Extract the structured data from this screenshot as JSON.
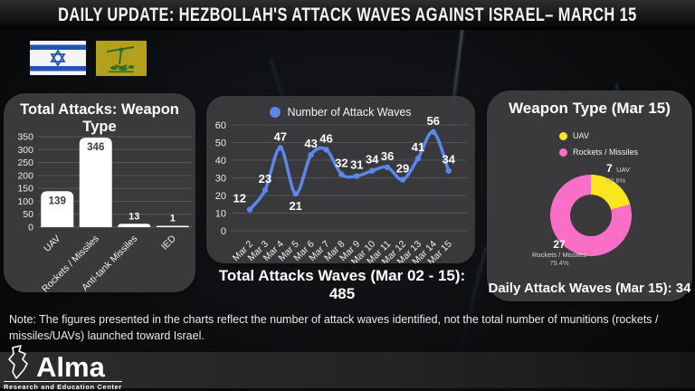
{
  "header": {
    "title": "DAILY UPDATE: HEZBOLLAH'S ATTACK WAVES AGAINST ISRAEL– MARCH 15"
  },
  "bar_panel": {
    "title": "Total Attacks: Weapon Type"
  },
  "line_panel": {
    "legend": "Number of Attack Waves",
    "total_label": "Total Attacks Waves (Mar 02 - 15):",
    "total_value": "485"
  },
  "donut_panel": {
    "title": "Weapon Type (Mar 15)",
    "legend": [
      {
        "label": "UAV"
      },
      {
        "label": "Rockets / Missiles"
      }
    ],
    "slice_labels": [
      {
        "value": "7",
        "name": "UAV",
        "pct": "20.6%"
      },
      {
        "value": "27",
        "name": "Rockets / Missiles",
        "pct": "79.4%"
      }
    ],
    "daily_label": "Daily Attack Waves (Mar 15): 34"
  },
  "note": "Note: The figures presented in the charts reflect the number of attack waves identified, not the total number of munitions (rockets / missiles/UAVs) launched toward Israel.",
  "footer": {
    "logo_text": "Alma",
    "logo_tagline": "Research and Education Center"
  },
  "chart_data": [
    {
      "type": "bar",
      "title": "Total Attacks: Weapon Type",
      "categories": [
        "UAV",
        "Rockets / Missiles",
        "Anti-tank Missiles",
        "IED"
      ],
      "values": [
        139,
        346,
        13,
        1
      ],
      "ylim": [
        0,
        350
      ],
      "ytick_step": 50,
      "bar_color": "#ffffff",
      "grid": true
    },
    {
      "type": "line",
      "title": "Number of Attack Waves",
      "x": [
        "Mar 2",
        "Mar 3",
        "Mar 4",
        "Mar 5",
        "Mar 6",
        "Mar 7",
        "Mar 8",
        "Mar 9",
        "Mar 10",
        "Mar 11",
        "Mar 12",
        "Mar 13",
        "Mar 14",
        "Mar 15"
      ],
      "values": [
        12,
        23,
        47,
        21,
        43,
        46,
        32,
        31,
        34,
        36,
        29,
        41,
        56,
        34
      ],
      "ylim": [
        0,
        60
      ],
      "ytick_step": 10,
      "line_color": "#5b86ea",
      "grid": true,
      "legend_position": "top",
      "total": 485
    },
    {
      "type": "pie",
      "donut": true,
      "title": "Weapon Type (Mar 15)",
      "labels": [
        "UAV",
        "Rockets / Missiles"
      ],
      "values": [
        7,
        27
      ],
      "percents": [
        20.6,
        79.4
      ],
      "colors": [
        "#fbe51c",
        "#f96fc5"
      ],
      "daily_total": 34
    }
  ]
}
